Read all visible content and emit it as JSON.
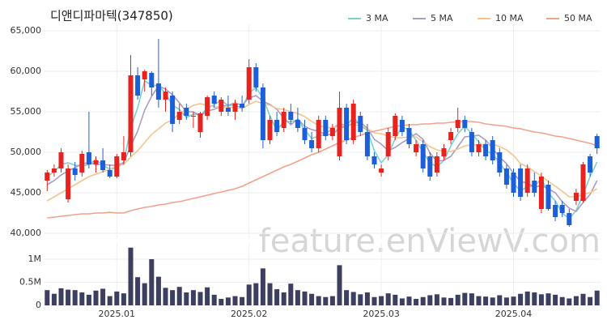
{
  "chart_data": {
    "type": "candlestick",
    "title": "디앤디파마텍(347850)",
    "watermark": "feature.enViewV.com",
    "grid": true,
    "up_color": "#e8231f",
    "down_color": "#1d5fd8",
    "categories": [
      null,
      null,
      null,
      null,
      null,
      null,
      null,
      null,
      null,
      null,
      "2025.01",
      null,
      null,
      null,
      null,
      null,
      null,
      null,
      null,
      null,
      null,
      null,
      null,
      null,
      null,
      null,
      null,
      null,
      null,
      "2025.02",
      null,
      null,
      null,
      null,
      null,
      null,
      null,
      null,
      null,
      null,
      null,
      null,
      null,
      null,
      null,
      null,
      null,
      null,
      "2025.03",
      null,
      null,
      null,
      null,
      null,
      null,
      null,
      null,
      null,
      null,
      null,
      null,
      null,
      null,
      null,
      null,
      null,
      null,
      "2025.04",
      null,
      null,
      null,
      null,
      null,
      null,
      null,
      null,
      null,
      null,
      null,
      null
    ],
    "open": [
      46500,
      47500,
      48000,
      44200,
      48000,
      47500,
      50000,
      48500,
      49000,
      47800,
      47000,
      49000,
      50000,
      59500,
      59000,
      59800,
      58500,
      56500,
      57000,
      54000,
      55500,
      54500,
      52500,
      54500,
      57000,
      55000,
      55500,
      55000,
      56000,
      56500,
      60500,
      58000,
      51500,
      54000,
      53000,
      55000,
      54000,
      53000,
      51500,
      50500,
      54000,
      52000,
      49500,
      55500,
      51500,
      54500,
      52500,
      49500,
      47500,
      49500,
      52000,
      54000,
      53000,
      50000,
      51000,
      49500,
      47500,
      49500,
      51500,
      53000,
      54000,
      52500,
      50000,
      51000,
      51500,
      50000,
      48000,
      47500,
      48000,
      45000,
      46500,
      43000,
      46000,
      43500,
      43500,
      42500,
      44000,
      44000,
      49500,
      52000
    ],
    "high": [
      47800,
      48500,
      50500,
      48500,
      48800,
      50200,
      55000,
      49500,
      50500,
      48500,
      49800,
      52000,
      62000,
      60500,
      60200,
      60000,
      64000,
      58000,
      57500,
      56000,
      56000,
      55000,
      55000,
      57000,
      57500,
      56800,
      57000,
      56500,
      57000,
      61500,
      61000,
      58500,
      54500,
      55000,
      55500,
      56000,
      55500,
      54000,
      52500,
      54500,
      54500,
      53500,
      57500,
      56000,
      56500,
      55000,
      53500,
      50000,
      48500,
      53000,
      54800,
      54500,
      53500,
      51500,
      51500,
      50000,
      50000,
      51000,
      53000,
      55500,
      54500,
      53000,
      51500,
      51500,
      52000,
      50500,
      48500,
      48000,
      48500,
      48500,
      47500,
      47500,
      46500,
      44000,
      44000,
      43000,
      45500,
      48800,
      49800,
      52300
    ],
    "low": [
      45200,
      47000,
      47500,
      43800,
      46500,
      47000,
      48000,
      47500,
      47500,
      46800,
      46800,
      48500,
      49500,
      56500,
      57500,
      57000,
      55500,
      55000,
      52500,
      53500,
      54000,
      53000,
      51800,
      54000,
      55500,
      54500,
      54500,
      54000,
      55000,
      56000,
      57500,
      50500,
      51000,
      52000,
      52500,
      53500,
      52500,
      51000,
      50000,
      50000,
      51500,
      51500,
      49000,
      51000,
      51000,
      52000,
      49000,
      48000,
      47000,
      49000,
      51500,
      52000,
      50500,
      49500,
      47500,
      46500,
      47000,
      49000,
      51000,
      52500,
      52500,
      49500,
      49500,
      49000,
      48500,
      47000,
      45500,
      44500,
      44000,
      44500,
      44500,
      42500,
      42800,
      41500,
      42000,
      40800,
      43500,
      43800,
      47000,
      49800
    ],
    "close": [
      47500,
      48000,
      50000,
      48000,
      47200,
      49800,
      48500,
      49000,
      47800,
      47000,
      49500,
      50000,
      59500,
      57000,
      60000,
      58000,
      56500,
      57500,
      53500,
      55000,
      54500,
      54500,
      54800,
      56800,
      56000,
      56500,
      55000,
      56000,
      55500,
      60500,
      58000,
      51500,
      54000,
      52500,
      55000,
      54000,
      53000,
      51500,
      50500,
      54000,
      52000,
      53000,
      55500,
      51500,
      56000,
      52500,
      49500,
      48500,
      48000,
      52500,
      54500,
      52500,
      51000,
      51000,
      48000,
      47000,
      49500,
      50500,
      52500,
      54000,
      53000,
      50000,
      51000,
      49500,
      49000,
      47500,
      46000,
      45000,
      44500,
      48000,
      45000,
      47000,
      43000,
      42000,
      42500,
      41000,
      45000,
      48500,
      47500,
      50500
    ],
    "ylim": [
      39300,
      65800
    ],
    "yticks": [
      {
        "value": 40000,
        "label": "40,000"
      },
      {
        "value": 45000,
        "label": "45,000"
      },
      {
        "value": 50000,
        "label": "50,000"
      },
      {
        "value": 55000,
        "label": "55,000"
      },
      {
        "value": 60000,
        "label": "60,000"
      },
      {
        "value": 65000,
        "label": "65,000"
      }
    ],
    "ma_series": [
      {
        "name": "3 MA",
        "color": "#79d2cf",
        "values": [
          47000,
          47600,
          48500,
          48700,
          48400,
          48300,
          48500,
          49100,
          48400,
          47900,
          48100,
          48800,
          53000,
          55500,
          58800,
          58300,
          58200,
          57300,
          55800,
          55300,
          54300,
          54700,
          54600,
          55400,
          55900,
          56400,
          55800,
          55800,
          55500,
          57300,
          58000,
          56700,
          54500,
          52700,
          53800,
          53800,
          54000,
          52800,
          51700,
          52000,
          52200,
          53000,
          53500,
          53300,
          54300,
          53300,
          52700,
          50200,
          48700,
          49700,
          51700,
          53200,
          52700,
          51500,
          50000,
          48700,
          48200,
          49000,
          50800,
          52300,
          53200,
          52300,
          51300,
          50200,
          49800,
          48700,
          47500,
          46200,
          45200,
          45800,
          45800,
          46700,
          45000,
          44000,
          42500,
          41800,
          42800,
          44800,
          47000,
          48800
        ]
      },
      {
        "name": "5 MA",
        "color": "#ab9cc2",
        "values": [
          46000,
          46500,
          47200,
          47700,
          48100,
          48600,
          48700,
          48500,
          48500,
          48400,
          48400,
          48700,
          50800,
          52600,
          55200,
          56900,
          58200,
          57800,
          57100,
          56100,
          55000,
          55000,
          54500,
          55100,
          55300,
          55700,
          55800,
          56100,
          55800,
          56700,
          57000,
          56300,
          55900,
          55300,
          54200,
          53400,
          54100,
          53200,
          52800,
          52600,
          52200,
          52200,
          53000,
          53200,
          53600,
          53700,
          53000,
          51600,
          51000,
          50200,
          50600,
          51200,
          51700,
          52300,
          51600,
          49900,
          48900,
          49000,
          49500,
          50700,
          51900,
          52000,
          52100,
          51500,
          50500,
          49400,
          48600,
          47400,
          46400,
          46200,
          45700,
          45900,
          45500,
          45000,
          43900,
          43100,
          42700,
          43800,
          44800,
          46500
        ]
      },
      {
        "name": "10 MA",
        "color": "#f4c48a",
        "values": [
          44000,
          44500,
          45000,
          45500,
          46000,
          46500,
          47000,
          47300,
          47600,
          47900,
          48300,
          48500,
          49400,
          50200,
          51200,
          52200,
          52900,
          53600,
          54000,
          54800,
          55300,
          55800,
          56000,
          55800,
          55600,
          55600,
          55600,
          55500,
          55400,
          55900,
          56300,
          56000,
          55800,
          55400,
          55300,
          55000,
          54800,
          54400,
          53800,
          53300,
          53100,
          53000,
          53300,
          53300,
          53400,
          53300,
          52900,
          52400,
          52300,
          52000,
          51800,
          51800,
          51900,
          51900,
          51300,
          50700,
          50300,
          50100,
          50100,
          50400,
          50800,
          50900,
          50900,
          51000,
          51000,
          50700,
          50300,
          49600,
          48600,
          48200,
          47600,
          47100,
          46400,
          45800,
          45200,
          44500,
          44500,
          44800,
          45000,
          45500
        ]
      },
      {
        "name": "50 MA",
        "color": "#f1a28b",
        "values": [
          41900,
          42000,
          42100,
          42200,
          42300,
          42400,
          42400,
          42500,
          42500,
          42600,
          42500,
          42500,
          42800,
          43000,
          43200,
          43300,
          43500,
          43600,
          43800,
          43900,
          44100,
          44300,
          44500,
          44700,
          44900,
          45100,
          45300,
          45500,
          45800,
          46200,
          46600,
          47000,
          47400,
          47800,
          48200,
          48500,
          48900,
          49300,
          49700,
          50000,
          50400,
          50800,
          51200,
          51500,
          51800,
          52100,
          52400,
          52600,
          52800,
          53000,
          53200,
          53300,
          53400,
          53400,
          53500,
          53500,
          53600,
          53600,
          53700,
          53800,
          53800,
          53800,
          53700,
          53500,
          53400,
          53300,
          53200,
          53000,
          52900,
          52700,
          52500,
          52400,
          52200,
          52000,
          51900,
          51700,
          51500,
          51300,
          51100,
          50800
        ]
      }
    ],
    "volume": {
      "color": "#3e3f60",
      "values": [
        330000,
        250000,
        370000,
        340000,
        330000,
        280000,
        230000,
        320000,
        360000,
        200000,
        300000,
        260000,
        1250000,
        610000,
        480000,
        1000000,
        620000,
        380000,
        330000,
        400000,
        280000,
        330000,
        290000,
        390000,
        230000,
        140000,
        170000,
        200000,
        180000,
        450000,
        480000,
        800000,
        480000,
        350000,
        280000,
        470000,
        330000,
        300000,
        250000,
        200000,
        180000,
        200000,
        870000,
        330000,
        290000,
        240000,
        280000,
        180000,
        200000,
        260000,
        230000,
        150000,
        190000,
        140000,
        180000,
        220000,
        240000,
        170000,
        160000,
        230000,
        270000,
        260000,
        200000,
        190000,
        170000,
        220000,
        170000,
        190000,
        250000,
        300000,
        280000,
        240000,
        260000,
        230000,
        180000,
        150000,
        200000,
        250000,
        180000,
        320000
      ],
      "ylim": [
        0,
        1350000
      ],
      "yticks": [
        0,
        {
          "value": 500000,
          "label": "0.5M"
        },
        {
          "value": 1000000,
          "label": "1M"
        }
      ]
    }
  }
}
